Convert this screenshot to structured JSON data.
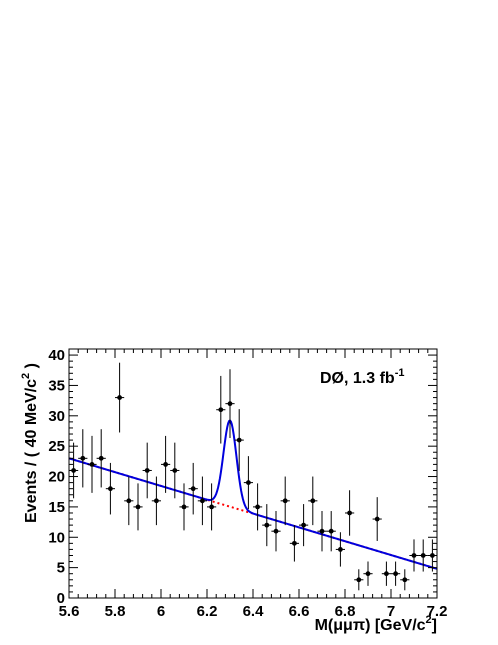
{
  "chart_data": {
    "type": "scatter",
    "xlabel_main": "M(μμπ) [GeV/c",
    "xlabel_sup": "2",
    "xlabel_end": "]",
    "ylabel_main": "Events / ( 40  MeV/c",
    "ylabel_sup": "2",
    "ylabel_end": " )",
    "annotation_main": "DØ, 1.3 fb",
    "annotation_sup": "-1",
    "xlim": [
      5.6,
      7.2
    ],
    "ylim": [
      0,
      41
    ],
    "x_ticks": [
      5.6,
      5.8,
      6.0,
      6.2,
      6.4,
      6.6,
      6.8,
      7.0,
      7.2
    ],
    "x_tick_labels": [
      "5.6",
      "5.8",
      "6",
      "6.2",
      "6.4",
      "6.6",
      "6.8",
      "7",
      "7.2"
    ],
    "y_ticks": [
      0,
      5,
      10,
      15,
      20,
      25,
      30,
      35,
      40
    ],
    "y_tick_labels": [
      "0",
      "5",
      "10",
      "15",
      "20",
      "25",
      "30",
      "35",
      "40"
    ],
    "bin_halfwidth": 0.02,
    "points": [
      {
        "x": 5.62,
        "y": 21
      },
      {
        "x": 5.66,
        "y": 23
      },
      {
        "x": 5.7,
        "y": 22
      },
      {
        "x": 5.74,
        "y": 23
      },
      {
        "x": 5.78,
        "y": 18
      },
      {
        "x": 5.82,
        "y": 33
      },
      {
        "x": 5.86,
        "y": 16
      },
      {
        "x": 5.9,
        "y": 15
      },
      {
        "x": 5.94,
        "y": 21
      },
      {
        "x": 5.98,
        "y": 16
      },
      {
        "x": 6.02,
        "y": 22
      },
      {
        "x": 6.06,
        "y": 21
      },
      {
        "x": 6.1,
        "y": 15
      },
      {
        "x": 6.14,
        "y": 18
      },
      {
        "x": 6.18,
        "y": 16
      },
      {
        "x": 6.22,
        "y": 15
      },
      {
        "x": 6.26,
        "y": 31
      },
      {
        "x": 6.3,
        "y": 32
      },
      {
        "x": 6.34,
        "y": 26
      },
      {
        "x": 6.38,
        "y": 19
      },
      {
        "x": 6.42,
        "y": 15
      },
      {
        "x": 6.46,
        "y": 12
      },
      {
        "x": 6.5,
        "y": 11
      },
      {
        "x": 6.54,
        "y": 16
      },
      {
        "x": 6.58,
        "y": 9
      },
      {
        "x": 6.62,
        "y": 12
      },
      {
        "x": 6.66,
        "y": 16
      },
      {
        "x": 6.7,
        "y": 11
      },
      {
        "x": 6.74,
        "y": 11
      },
      {
        "x": 6.78,
        "y": 8
      },
      {
        "x": 6.82,
        "y": 14
      },
      {
        "x": 6.86,
        "y": 3
      },
      {
        "x": 6.9,
        "y": 4
      },
      {
        "x": 6.94,
        "y": 13
      },
      {
        "x": 6.98,
        "y": 4
      },
      {
        "x": 7.02,
        "y": 4
      },
      {
        "x": 7.06,
        "y": 3
      },
      {
        "x": 7.1,
        "y": 7
      },
      {
        "x": 7.14,
        "y": 7
      },
      {
        "x": 7.18,
        "y": 7
      }
    ],
    "background_fit": {
      "type": "linear",
      "intercept_at_xmin": 23.0,
      "value_at_xmax": 4.8,
      "color": "#ff0000",
      "style": "dotted"
    },
    "total_fit": {
      "type": "gaussian_plus_linear",
      "mean": 6.3,
      "sigma": 0.028,
      "amplitude": 14.2,
      "color": "#0000dd"
    },
    "colors": {
      "points": "#000000",
      "background": "#ff0000",
      "total": "#0000dd"
    }
  }
}
